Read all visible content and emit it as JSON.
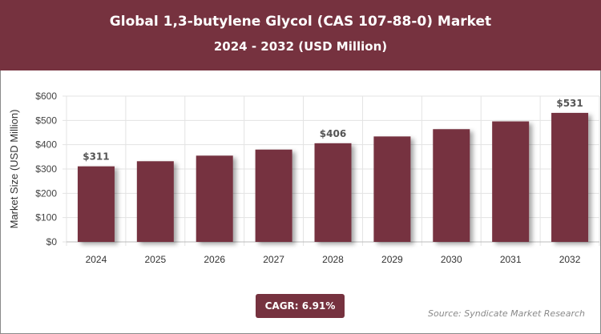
{
  "header": {
    "title": "Global 1,3-butylene Glycol (CAS 107-88-0) Market",
    "subtitle": "2024 - 2032 (USD Million)"
  },
  "cagr": "CAGR: 6.91%",
  "source": "Source: Syndicate Market Research",
  "colors": {
    "bar": "#76323F",
    "header": "#76323F"
  },
  "chart_data": {
    "type": "bar",
    "title": "Global 1,3-butylene Glycol (CAS 107-88-0) Market",
    "categories": [
      "2024",
      "2025",
      "2026",
      "2027",
      "2028",
      "2029",
      "2030",
      "2031",
      "2032"
    ],
    "values": [
      311,
      332,
      355,
      380,
      406,
      434,
      464,
      496,
      531
    ],
    "data_labels": {
      "0": "$311",
      "4": "$406",
      "8": "$531"
    },
    "xlabel": "",
    "ylabel": "Market Size (USD Million)",
    "ylim": [
      0,
      600
    ],
    "yticks": [
      "$0",
      "$100",
      "$200",
      "$300",
      "$400",
      "$500",
      "$600"
    ],
    "grid": true
  }
}
